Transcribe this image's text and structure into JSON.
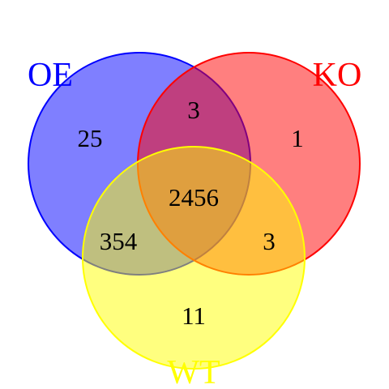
{
  "sets": [
    {
      "key": "oe",
      "label": "OE",
      "fill": "#0000ff",
      "stroke": "#0000ff"
    },
    {
      "key": "ko",
      "label": "KO",
      "fill": "#ff0000",
      "stroke": "#ff0000"
    },
    {
      "key": "wt",
      "label": "WT",
      "fill": "#ffff00",
      "stroke": "#ffff00"
    }
  ],
  "regions": {
    "oe_only": "25",
    "ko_only": "1",
    "wt_only": "11",
    "oe_ko": "3",
    "oe_wt": "354",
    "ko_wt": "3",
    "oe_ko_wt": "2456"
  },
  "fill_opacity": 0.5
}
